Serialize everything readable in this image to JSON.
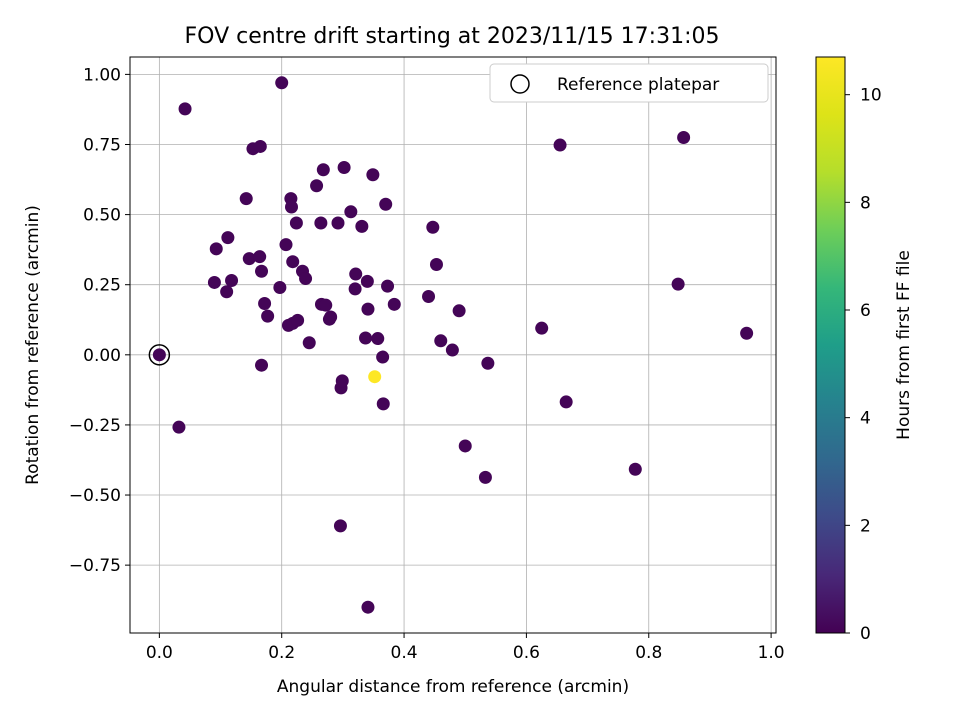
{
  "chart_data": {
    "type": "scatter",
    "title": "FOV centre drift starting at 2023/11/15 17:31:05",
    "xlabel": "Angular distance from reference (arcmin)",
    "ylabel": "Rotation from reference (arcmin)",
    "xlim": [
      -0.048,
      1.008
    ],
    "ylim": [
      -0.992,
      1.062
    ],
    "x_ticks": [
      0.0,
      0.2,
      0.4,
      0.6,
      0.8,
      1.0
    ],
    "x_tick_labels": [
      "0.0",
      "0.2",
      "0.4",
      "0.6",
      "0.8",
      "1.0"
    ],
    "y_ticks": [
      -0.75,
      -0.5,
      -0.25,
      0.0,
      0.25,
      0.5,
      0.75,
      1.0
    ],
    "y_tick_labels": [
      "−0.75",
      "−0.50",
      "−0.25",
      "0.00",
      "0.25",
      "0.50",
      "0.75",
      "1.00"
    ],
    "grid": true,
    "legend": {
      "placement": "upper right",
      "entries": [
        "Reference platepar"
      ]
    },
    "colorbar": {
      "label": "Hours from first FF file",
      "range": [
        0,
        10.7
      ],
      "ticks": [
        0,
        2,
        4,
        6,
        8,
        10
      ],
      "tick_labels": [
        "0",
        "2",
        "4",
        "6",
        "8",
        "10"
      ],
      "colormap": "viridis"
    },
    "reference_point": {
      "x": 0.0,
      "y": 0.0
    },
    "points": [
      {
        "x": 0.0,
        "y": 0.0,
        "h": 0.1
      },
      {
        "x": 0.042,
        "y": 0.877,
        "h": 0.1
      },
      {
        "x": 0.032,
        "y": -0.258,
        "h": 0.1
      },
      {
        "x": 0.093,
        "y": 0.378,
        "h": 0.1
      },
      {
        "x": 0.09,
        "y": 0.258,
        "h": 0.1
      },
      {
        "x": 0.11,
        "y": 0.225,
        "h": 0.1
      },
      {
        "x": 0.112,
        "y": 0.418,
        "h": 0.1
      },
      {
        "x": 0.118,
        "y": 0.265,
        "h": 0.1
      },
      {
        "x": 0.142,
        "y": 0.557,
        "h": 0.1
      },
      {
        "x": 0.147,
        "y": 0.343,
        "h": 0.1
      },
      {
        "x": 0.153,
        "y": 0.735,
        "h": 0.1
      },
      {
        "x": 0.164,
        "y": 0.35,
        "h": 0.1
      },
      {
        "x": 0.165,
        "y": 0.743,
        "h": 0.1
      },
      {
        "x": 0.167,
        "y": 0.298,
        "h": 0.1
      },
      {
        "x": 0.167,
        "y": -0.037,
        "h": 0.1
      },
      {
        "x": 0.172,
        "y": 0.183,
        "h": 0.1
      },
      {
        "x": 0.177,
        "y": 0.138,
        "h": 0.1
      },
      {
        "x": 0.197,
        "y": 0.24,
        "h": 0.1
      },
      {
        "x": 0.2,
        "y": 0.97,
        "h": 0.1
      },
      {
        "x": 0.207,
        "y": 0.393,
        "h": 0.1
      },
      {
        "x": 0.211,
        "y": 0.105,
        "h": 0.1
      },
      {
        "x": 0.215,
        "y": 0.557,
        "h": 0.1
      },
      {
        "x": 0.216,
        "y": 0.527,
        "h": 0.1
      },
      {
        "x": 0.218,
        "y": 0.112,
        "h": 0.1
      },
      {
        "x": 0.218,
        "y": 0.332,
        "h": 0.1
      },
      {
        "x": 0.224,
        "y": 0.47,
        "h": 0.1
      },
      {
        "x": 0.226,
        "y": 0.123,
        "h": 0.1
      },
      {
        "x": 0.234,
        "y": 0.298,
        "h": 0.1
      },
      {
        "x": 0.239,
        "y": 0.272,
        "h": 0.1
      },
      {
        "x": 0.245,
        "y": 0.043,
        "h": 0.1
      },
      {
        "x": 0.257,
        "y": 0.603,
        "h": 0.1
      },
      {
        "x": 0.264,
        "y": 0.47,
        "h": 0.1
      },
      {
        "x": 0.265,
        "y": 0.18,
        "h": 0.1
      },
      {
        "x": 0.268,
        "y": 0.66,
        "h": 0.1
      },
      {
        "x": 0.272,
        "y": 0.177,
        "h": 0.1
      },
      {
        "x": 0.278,
        "y": 0.127,
        "h": 0.1
      },
      {
        "x": 0.28,
        "y": 0.135,
        "h": 0.1
      },
      {
        "x": 0.292,
        "y": 0.47,
        "h": 0.1
      },
      {
        "x": 0.296,
        "y": -0.61,
        "h": 0.1
      },
      {
        "x": 0.297,
        "y": -0.118,
        "h": 0.1
      },
      {
        "x": 0.299,
        "y": -0.093,
        "h": 0.1
      },
      {
        "x": 0.302,
        "y": 0.668,
        "h": 0.1
      },
      {
        "x": 0.313,
        "y": 0.51,
        "h": 0.1
      },
      {
        "x": 0.32,
        "y": 0.235,
        "h": 0.1
      },
      {
        "x": 0.321,
        "y": 0.288,
        "h": 0.1
      },
      {
        "x": 0.331,
        "y": 0.458,
        "h": 0.1
      },
      {
        "x": 0.337,
        "y": 0.06,
        "h": 0.1
      },
      {
        "x": 0.34,
        "y": 0.262,
        "h": 0.1
      },
      {
        "x": 0.341,
        "y": -0.9,
        "h": 0.1
      },
      {
        "x": 0.341,
        "y": 0.163,
        "h": 0.1
      },
      {
        "x": 0.349,
        "y": 0.642,
        "h": 0.1
      },
      {
        "x": 0.352,
        "y": -0.078,
        "h": 10.7
      },
      {
        "x": 0.357,
        "y": 0.058,
        "h": 0.1
      },
      {
        "x": 0.365,
        "y": -0.008,
        "h": 0.1
      },
      {
        "x": 0.366,
        "y": -0.175,
        "h": 0.1
      },
      {
        "x": 0.37,
        "y": 0.537,
        "h": 0.1
      },
      {
        "x": 0.373,
        "y": 0.245,
        "h": 0.1
      },
      {
        "x": 0.384,
        "y": 0.18,
        "h": 0.1
      },
      {
        "x": 0.44,
        "y": 0.208,
        "h": 0.1
      },
      {
        "x": 0.447,
        "y": 0.455,
        "h": 0.1
      },
      {
        "x": 0.453,
        "y": 0.322,
        "h": 0.1
      },
      {
        "x": 0.46,
        "y": 0.05,
        "h": 0.1
      },
      {
        "x": 0.479,
        "y": 0.017,
        "h": 0.1
      },
      {
        "x": 0.49,
        "y": 0.157,
        "h": 0.1
      },
      {
        "x": 0.5,
        "y": -0.325,
        "h": 0.1
      },
      {
        "x": 0.533,
        "y": -0.437,
        "h": 0.1
      },
      {
        "x": 0.537,
        "y": -0.03,
        "h": 0.1
      },
      {
        "x": 0.625,
        "y": 0.095,
        "h": 0.1
      },
      {
        "x": 0.655,
        "y": 0.748,
        "h": 0.1
      },
      {
        "x": 0.665,
        "y": -0.168,
        "h": 0.1
      },
      {
        "x": 0.778,
        "y": -0.408,
        "h": 0.1
      },
      {
        "x": 0.848,
        "y": 0.252,
        "h": 0.1
      },
      {
        "x": 0.857,
        "y": 0.775,
        "h": 0.1
      },
      {
        "x": 0.96,
        "y": 0.077,
        "h": 0.1
      }
    ]
  }
}
